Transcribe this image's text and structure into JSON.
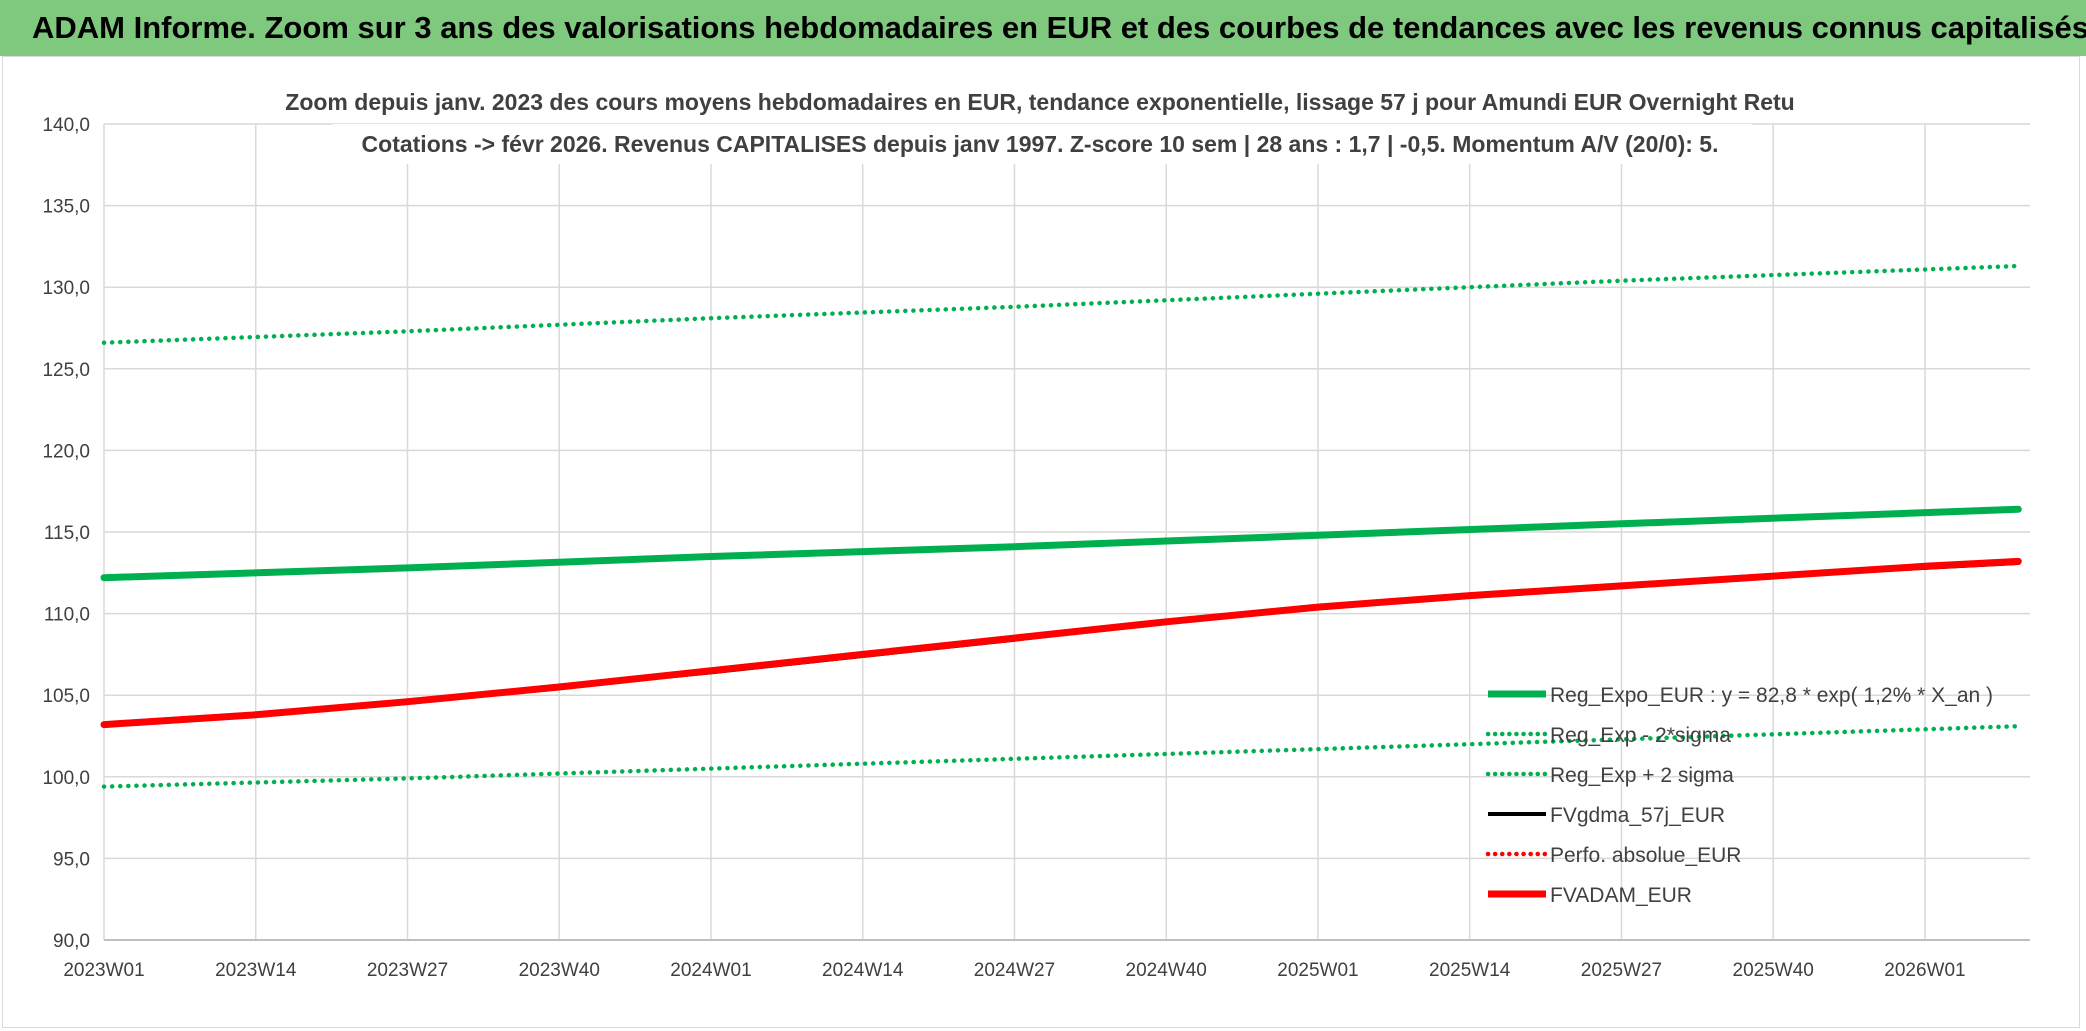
{
  "banner": {
    "title": "ADAM Informe. Zoom sur 3 ans des valorisations hebdomadaires en EUR et des courbes de tendances avec les revenus connus capitalisés"
  },
  "colors": {
    "banner_bg": "#7fc97f",
    "reg_expo": "#00b050",
    "fvgdma": "#000000",
    "perfo": "#ff0000",
    "fvadam": "#ff0000",
    "grid": "#d9d9d9"
  },
  "chart_data": {
    "type": "line",
    "title_line1": "Zoom depuis janv. 2023 des cours moyens hebdomadaires en EUR, tendance exponentielle, lissage 57 j pour Amundi EUR Overnight Retu",
    "title_line2": "Cotations -> févr 2026. Revenus CAPITALISES depuis janv 1997. Z-score 10 sem | 28 ans : 1,7 | -0,5. Momentum A/V (20/0): 5.",
    "xlabel": "",
    "ylabel": "",
    "ylim": [
      90,
      140
    ],
    "yticks": [
      "90,0",
      "95,0",
      "100,0",
      "105,0",
      "110,0",
      "115,0",
      "120,0",
      "125,0",
      "130,0",
      "135,0",
      "140,0"
    ],
    "xlim": [
      0,
      165
    ],
    "xticks": [
      {
        "x": 0,
        "label": "2023W01"
      },
      {
        "x": 13,
        "label": "2023W14"
      },
      {
        "x": 26,
        "label": "2023W27"
      },
      {
        "x": 39,
        "label": "2023W40"
      },
      {
        "x": 52,
        "label": "2024W01"
      },
      {
        "x": 65,
        "label": "2024W14"
      },
      {
        "x": 78,
        "label": "2024W27"
      },
      {
        "x": 91,
        "label": "2024W40"
      },
      {
        "x": 104,
        "label": "2025W01"
      },
      {
        "x": 117,
        "label": "2025W14"
      },
      {
        "x": 130,
        "label": "2025W27"
      },
      {
        "x": 143,
        "label": "2025W40"
      },
      {
        "x": 156,
        "label": "2026W01"
      }
    ],
    "grid": true,
    "legend_position": "bottom-right",
    "series": [
      {
        "key": "reg_expo",
        "name": "Reg_Expo_EUR : y = 82,8 * exp( 1,2% *  X_an )",
        "style": "solid-thick",
        "color": "#00b050",
        "x": [
          0,
          26,
          52,
          78,
          104,
          130,
          164
        ],
        "y": [
          112.2,
          112.8,
          113.5,
          114.1,
          114.8,
          115.5,
          116.4
        ]
      },
      {
        "key": "reg_minus",
        "name": "Reg_Exp - 2*sigma",
        "style": "dotted",
        "color": "#00b050",
        "x": [
          0,
          26,
          52,
          78,
          104,
          130,
          164
        ],
        "y": [
          99.4,
          99.9,
          100.5,
          101.1,
          101.7,
          102.3,
          103.1
        ]
      },
      {
        "key": "reg_plus",
        "name": "Reg_Exp + 2 sigma",
        "style": "dotted",
        "color": "#00b050",
        "x": [
          0,
          26,
          52,
          78,
          104,
          130,
          164
        ],
        "y": [
          126.6,
          127.3,
          128.1,
          128.8,
          129.6,
          130.4,
          131.3
        ]
      },
      {
        "key": "fvgdma",
        "name": "FVgdma_57j_EUR",
        "style": "solid",
        "color": "#000000",
        "x": [
          0,
          13,
          26,
          39,
          52,
          65,
          78,
          91,
          104,
          117,
          130,
          143,
          156,
          164
        ],
        "y": [
          103.2,
          103.8,
          104.6,
          105.5,
          106.4,
          107.4,
          108.4,
          109.5,
          110.4,
          111.1,
          111.7,
          112.3,
          112.8,
          113.1
        ]
      },
      {
        "key": "perfo",
        "name": "Perfo. absolue_EUR",
        "style": "dotted",
        "color": "#ff0000",
        "x": [],
        "y": []
      },
      {
        "key": "fvadam",
        "name": "FVADAM_EUR",
        "style": "solid-thick",
        "color": "#ff0000",
        "x": [
          0,
          13,
          26,
          39,
          52,
          65,
          78,
          91,
          104,
          117,
          130,
          143,
          156,
          164
        ],
        "y": [
          103.2,
          103.8,
          104.6,
          105.5,
          106.5,
          107.5,
          108.5,
          109.5,
          110.4,
          111.1,
          111.7,
          112.3,
          112.9,
          113.2
        ]
      }
    ]
  }
}
